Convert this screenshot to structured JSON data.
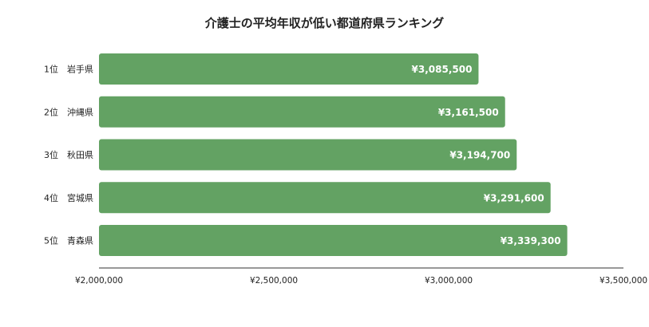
{
  "chart_data": {
    "type": "bar",
    "orientation": "horizontal",
    "title": "介護士の平均年収が低い都道府県ランキング",
    "categories": [
      "1位　岩手県",
      "2位　沖縄県",
      "3位　秋田県",
      "4位　宮城県",
      "5位　青森県"
    ],
    "values": [
      3085500,
      3161500,
      3194700,
      3291600,
      3339300
    ],
    "data_labels": [
      "¥3,085,500",
      "¥3,161,500",
      "¥3,194,700",
      "¥3,291,600",
      "¥3,339,300"
    ],
    "xlim": [
      2000000,
      3500000
    ],
    "x_ticks": [
      2000000,
      2500000,
      3000000,
      3500000
    ],
    "x_tick_labels": [
      "¥2,000,000",
      "¥2,500,000",
      "¥3,000,000",
      "¥3,500,000"
    ],
    "xlabel": "",
    "ylabel": "",
    "grid": false,
    "legend": "none",
    "colors": {
      "bar": "#63a263",
      "axis": "#333333",
      "text": "#222222"
    }
  }
}
